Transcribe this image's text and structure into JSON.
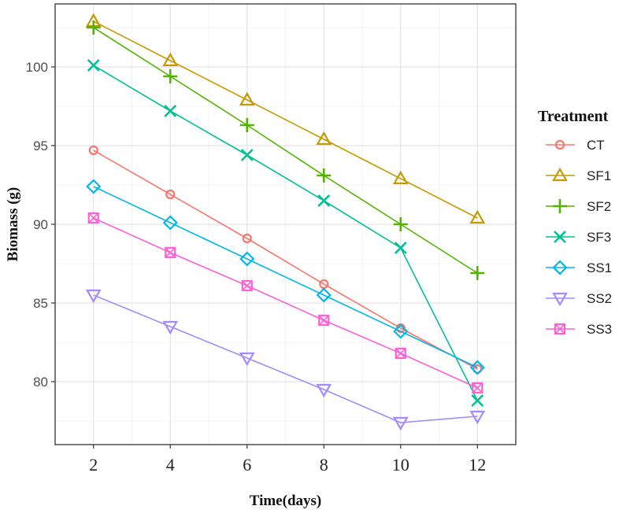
{
  "chart_data": {
    "type": "line",
    "title": "",
    "xlabel": "Time(days)",
    "ylabel": "Biomass (g)",
    "x": [
      2,
      4,
      6,
      8,
      10,
      12
    ],
    "x_ticks": [
      "2",
      "4",
      "6",
      "8",
      "10",
      "12"
    ],
    "y_ticks": [
      "80",
      "85",
      "90",
      "95",
      "100"
    ],
    "y_tick_values": [
      80,
      85,
      90,
      95,
      100
    ],
    "xlim": [
      1,
      13
    ],
    "ylim": [
      76,
      104
    ],
    "grid": true,
    "legend": {
      "title": "Treatment",
      "placement": "right"
    },
    "series": [
      {
        "name": "CT",
        "color": "#F8766D",
        "marker": "circle",
        "values": [
          94.7,
          91.9,
          89.1,
          86.2,
          83.4,
          80.8
        ]
      },
      {
        "name": "SF1",
        "color": "#C49A00",
        "marker": "triangle-up",
        "values": [
          102.9,
          100.4,
          97.9,
          95.4,
          92.9,
          90.4
        ]
      },
      {
        "name": "SF2",
        "color": "#53B400",
        "marker": "plus",
        "values": [
          102.5,
          99.4,
          96.3,
          93.1,
          90.0,
          86.9
        ]
      },
      {
        "name": "SF3",
        "color": "#00C094",
        "marker": "cross",
        "values": [
          100.1,
          97.2,
          94.4,
          91.5,
          88.5,
          78.8
        ]
      },
      {
        "name": "SS1",
        "color": "#00B6EB",
        "marker": "diamond",
        "values": [
          92.4,
          90.1,
          87.8,
          85.5,
          83.2,
          80.9
        ]
      },
      {
        "name": "SS2",
        "color": "#A58AFF",
        "marker": "triangle-down",
        "values": [
          85.5,
          83.5,
          81.5,
          79.5,
          77.4,
          77.8
        ]
      },
      {
        "name": "SS3",
        "color": "#FB61D7",
        "marker": "square-x",
        "values": [
          90.4,
          88.2,
          86.1,
          83.9,
          81.8,
          79.6
        ]
      }
    ]
  }
}
